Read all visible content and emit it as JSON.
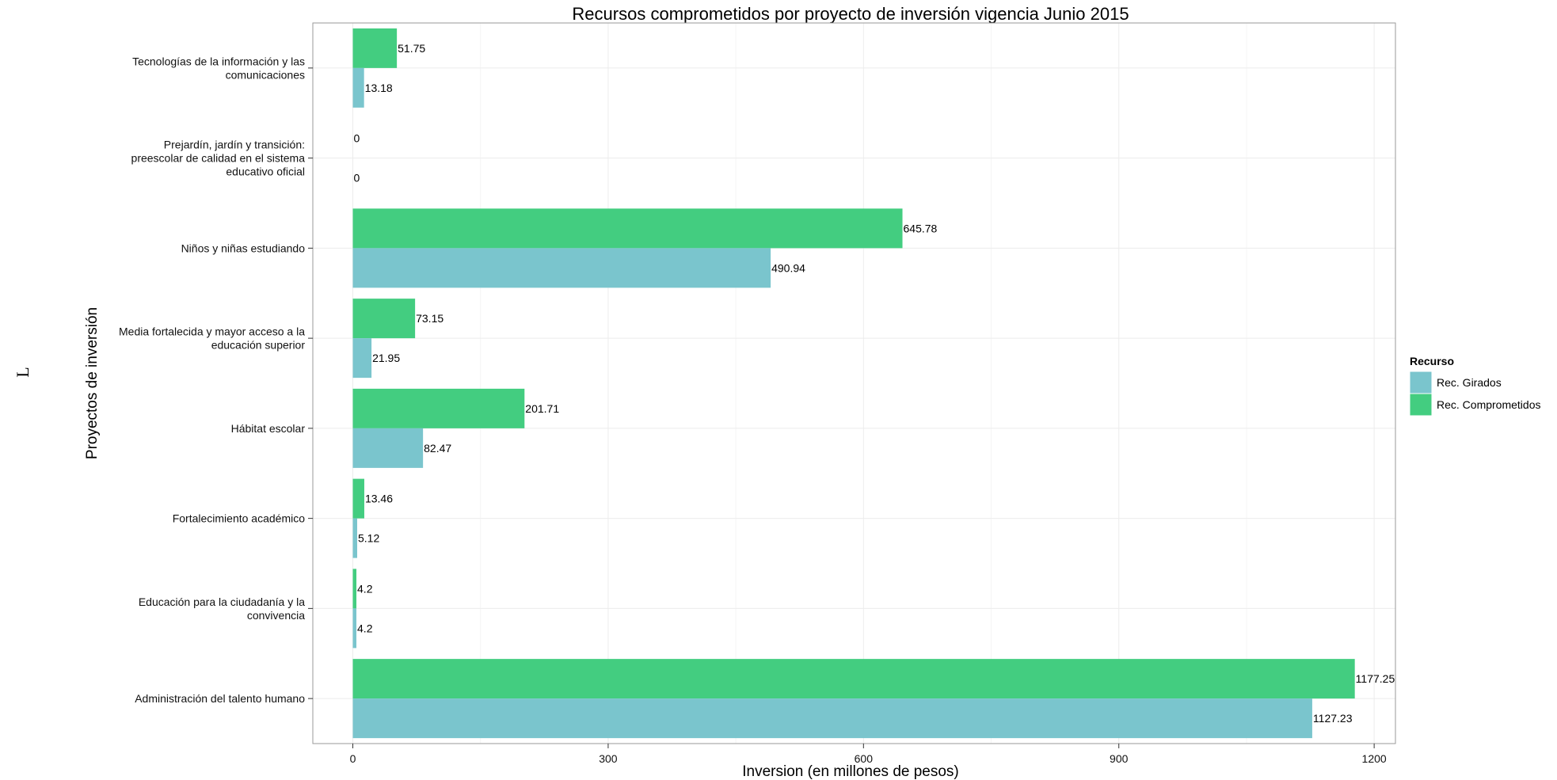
{
  "chart_data": {
    "type": "bar",
    "orientation": "horizontal",
    "title": "Recursos comprometidos por proyecto de inversión vigencia Junio 2015",
    "xlabel": "Inversion (en millones de pesos)",
    "ylabel": "Proyectos de inversión",
    "stray_text": "L",
    "xlim": [
      -47,
      1225
    ],
    "xticks": [
      0,
      300,
      600,
      900,
      1200
    ],
    "grid": true,
    "legend_position": "right",
    "legend_title": "Recurso",
    "categories": [
      [
        "Tecnologías de la información y las",
        "comunicaciones"
      ],
      [
        "Prejardín, jardín y transición:",
        "preescolar de calidad en el sistema",
        "educativo oficial"
      ],
      [
        "Niños y niñas estudiando"
      ],
      [
        "Media fortalecida y mayor acceso a la",
        "educación superior"
      ],
      [
        "Hábitat escolar"
      ],
      [
        "Fortalecimiento académico"
      ],
      [
        "Educación para la ciudadanía y la",
        "convivencia"
      ],
      [
        "Administración del talento humano"
      ]
    ],
    "series": [
      {
        "name": "Rec. Girados",
        "color": "#7AC5CD",
        "values": [
          13.18,
          0,
          490.94,
          21.95,
          82.47,
          5.12,
          4.2,
          1127.23
        ],
        "labels": [
          "13.18",
          "0",
          "490.94",
          "21.95",
          "82.47",
          "5.12",
          "4.2",
          "1127.23"
        ]
      },
      {
        "name": "Rec. Comprometidos",
        "color": "#43CD80",
        "values": [
          51.75,
          0,
          645.78,
          73.15,
          201.71,
          13.46,
          4.2,
          1177.25
        ],
        "labels": [
          "51.75",
          "0",
          "645.78",
          "73.15",
          "201.71",
          "13.46",
          "4.2",
          "1177.25"
        ]
      }
    ]
  }
}
